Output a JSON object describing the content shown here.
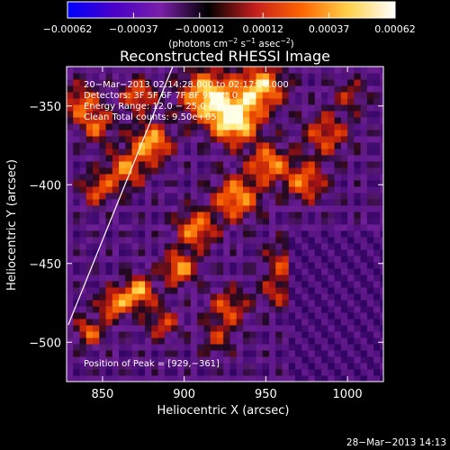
{
  "chart_data": {
    "type": "heatmap",
    "title": "Reconstructed RHESSI Image",
    "xlabel": "Heliocentric X (arcsec)",
    "ylabel": "Heliocentric Y (arcsec)",
    "xlim": [
      828,
      1022
    ],
    "ylim": [
      -525,
      -325
    ],
    "x_ticks": [
      850,
      900,
      950,
      1000
    ],
    "x_tick_labels": [
      "850",
      "900",
      "950",
      "1000"
    ],
    "y_ticks": [
      -350,
      -400,
      -450,
      -500
    ],
    "y_tick_labels": [
      "−350",
      "−400",
      "−450",
      "−500"
    ],
    "colorbar": {
      "range": [
        -0.00062,
        0.00062
      ],
      "tick_values": [
        -0.00062,
        -0.00037,
        -0.00012,
        0.00012,
        0.00037,
        0.00062
      ],
      "tick_labels": [
        "−0.00062",
        "−0.00037",
        "−0.00012",
        "0.00012",
        "0.00037",
        "0.00062"
      ],
      "unit_label": "(photons cm",
      "unit_exp1": "−2",
      "unit_mid1": " s",
      "unit_exp2": "−1",
      "unit_mid2": " asec",
      "unit_exp3": "−2",
      "unit_end": ")",
      "colors": [
        "#0000ff",
        "#4a00c8",
        "#7a1fa8",
        "#000000",
        "#c41e1e",
        "#ff6400",
        "#ffd24a",
        "#ffffff"
      ]
    },
    "annotations": {
      "time_range": "20−Mar−2013 02:14:28.000 to 02:17:20.000",
      "detectors": "Detectors: 3F 5F 6F 7F 8F 9F Att 0",
      "energy_range": "Energy Range: 12.0 − 25.0 keV",
      "method_counts": "Clean     Total counts: 9.50e+05",
      "peak_position": "Position of Peak = [929,−361]"
    },
    "limb_line": [
      [
        829,
        -489
      ],
      [
        893,
        -325
      ]
    ],
    "grid": false,
    "pixel_size_arcsec": 4
  },
  "footer": {
    "timestamp": "28−Mar−2013 14:13"
  }
}
